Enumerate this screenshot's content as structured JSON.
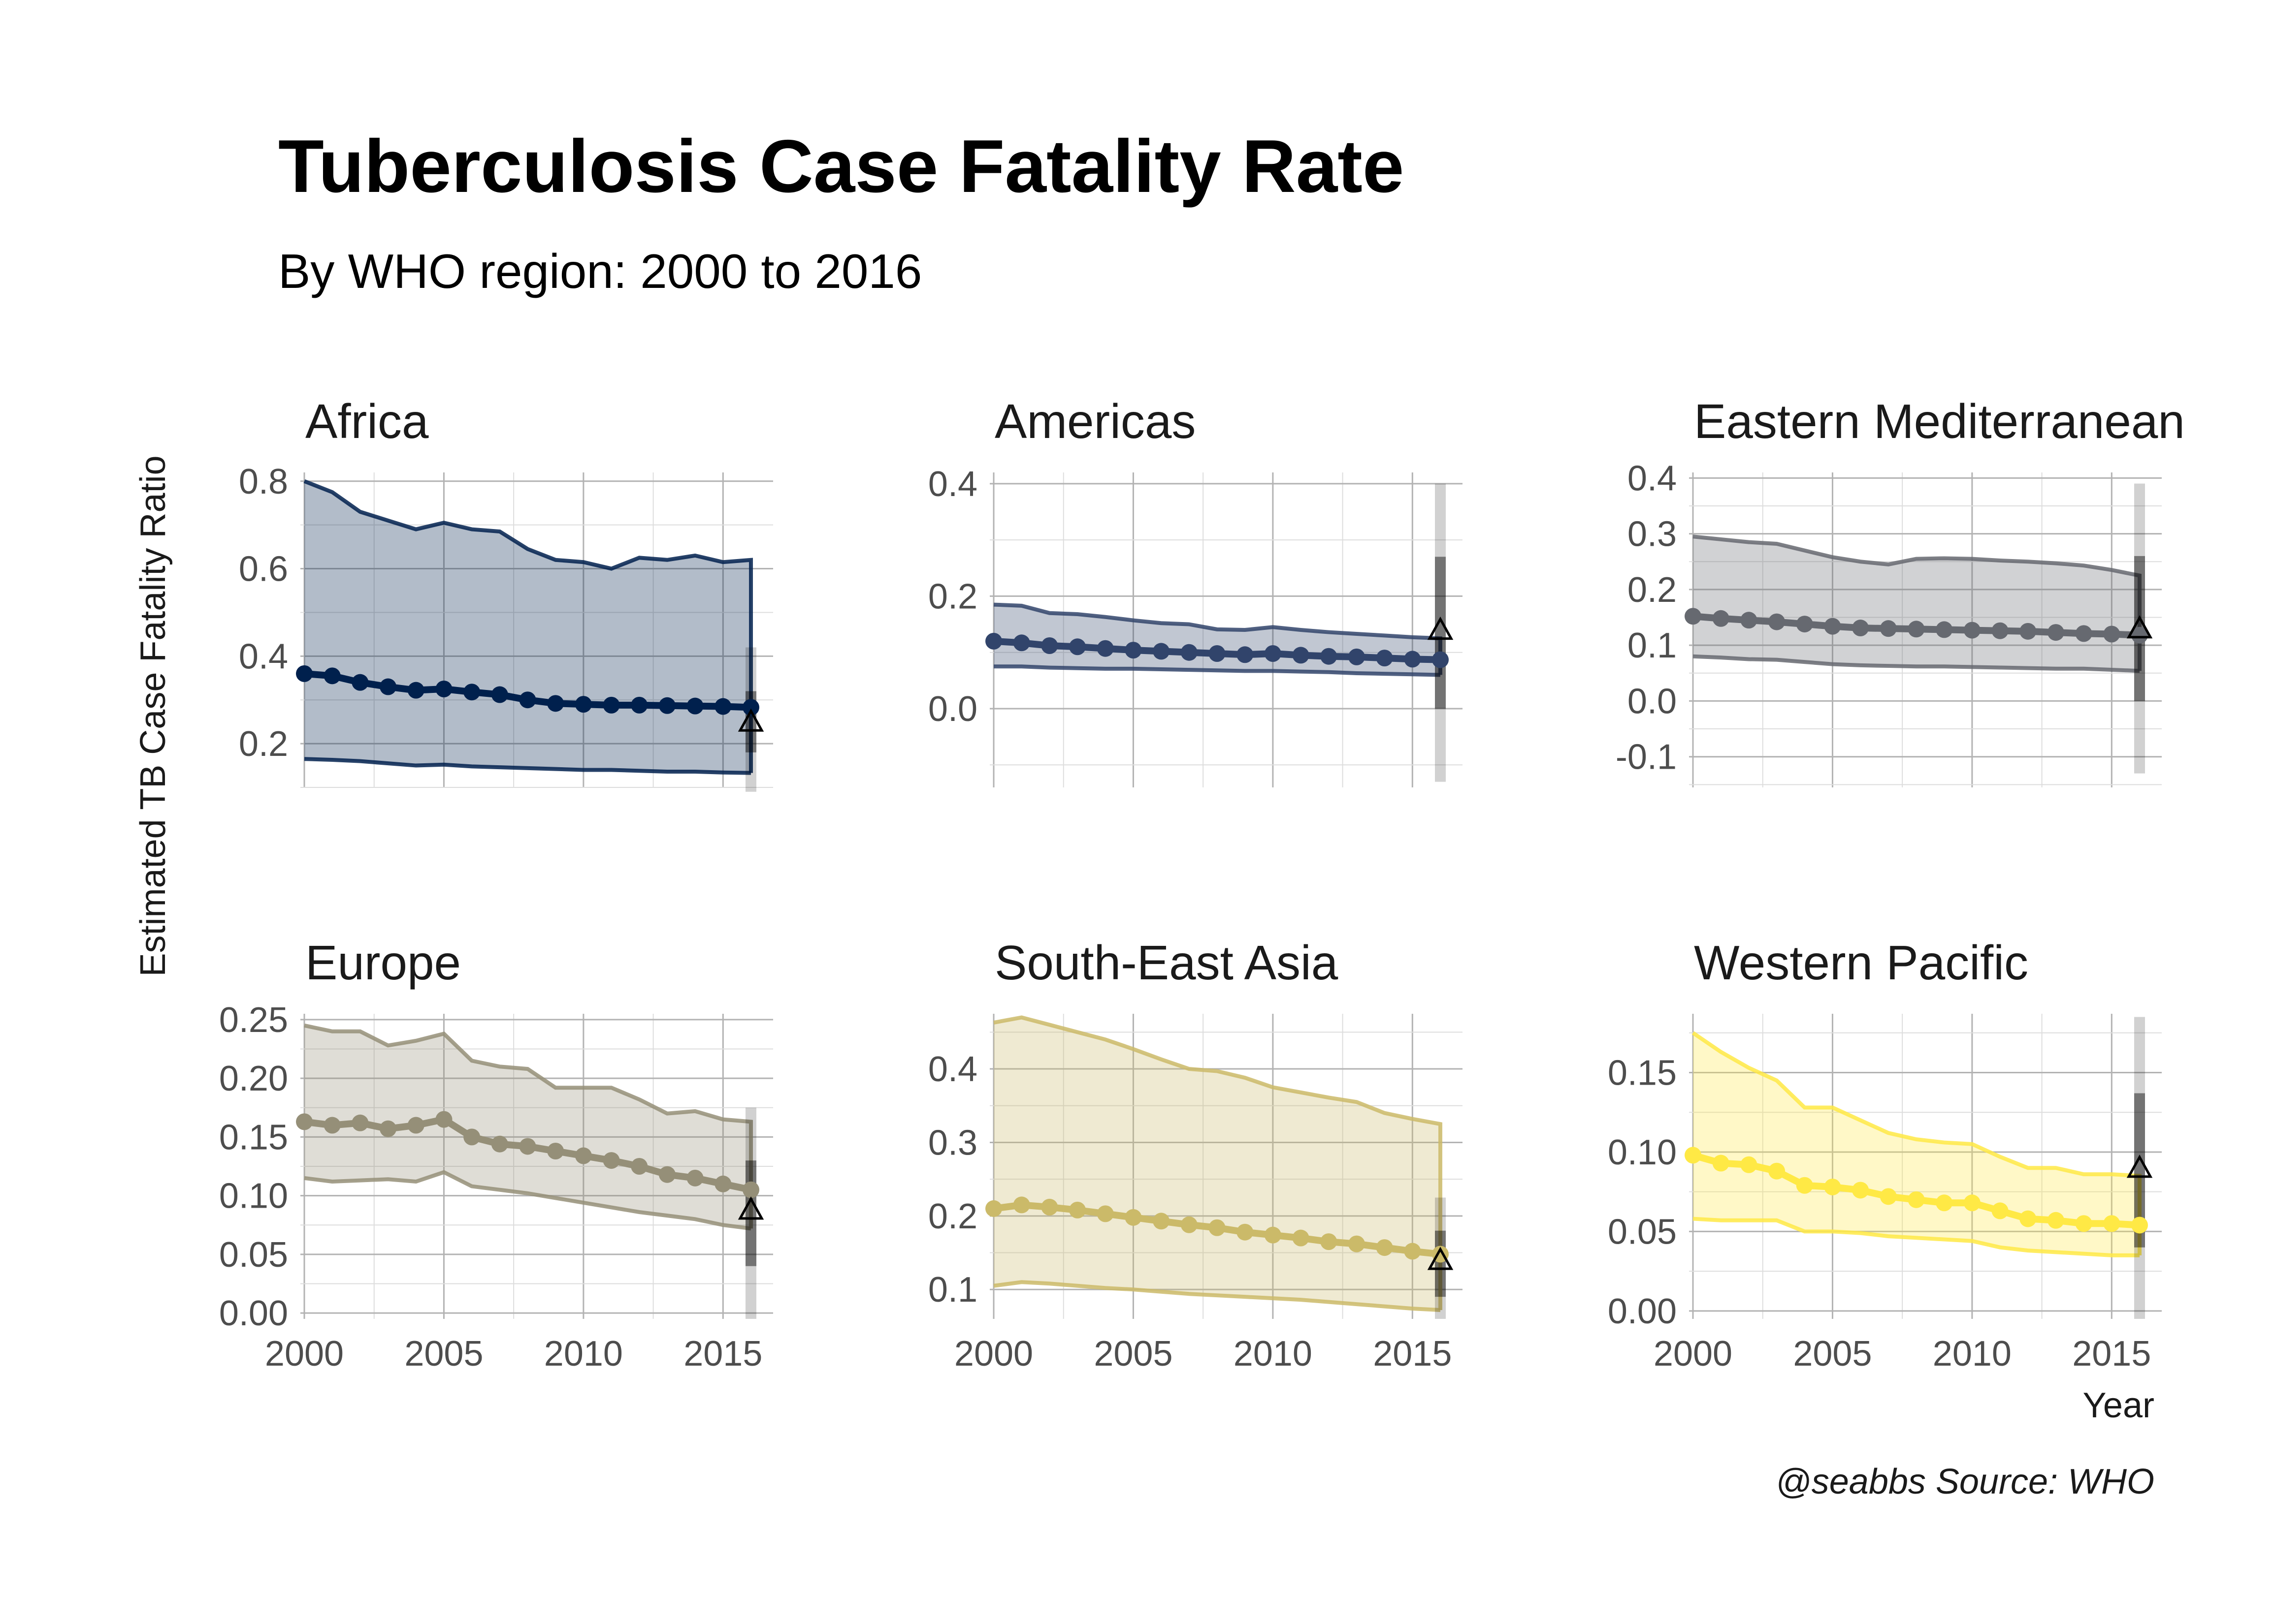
{
  "title": "Tuberculosis Case Fatality Rate",
  "subtitle": "By WHO region: 2000 to 2016",
  "ylabel": "Estimated TB Case Fatality Ratio",
  "xlabel": "Year",
  "caption": "@seabbs Source: WHO",
  "chart_data": [
    {
      "type": "line",
      "panel": "Africa",
      "color": "#00204D",
      "xlim": [
        2000,
        2016
      ],
      "ylim": [
        0.1,
        0.82
      ],
      "y_ticks": [
        0.2,
        0.4,
        0.6,
        0.8
      ],
      "y_tick_labels": [
        "0.2",
        "0.4",
        "0.6",
        "0.8"
      ],
      "x_ticks": [
        2000,
        2005,
        2010,
        2015
      ],
      "x_tick_labels": [
        "2000",
        "2005",
        "2010",
        "2015"
      ],
      "show_x_labels": false,
      "x": [
        2000,
        2001,
        2002,
        2003,
        2004,
        2005,
        2006,
        2007,
        2008,
        2009,
        2010,
        2011,
        2012,
        2013,
        2014,
        2015,
        2016
      ],
      "y": [
        0.36,
        0.355,
        0.34,
        0.33,
        0.322,
        0.325,
        0.318,
        0.312,
        0.3,
        0.292,
        0.29,
        0.288,
        0.288,
        0.287,
        0.286,
        0.285,
        0.283
      ],
      "lower": [
        0.165,
        0.163,
        0.16,
        0.155,
        0.15,
        0.152,
        0.148,
        0.146,
        0.144,
        0.142,
        0.14,
        0.14,
        0.138,
        0.136,
        0.136,
        0.134,
        0.133
      ],
      "upper": [
        0.8,
        0.775,
        0.73,
        0.71,
        0.69,
        0.705,
        0.69,
        0.685,
        0.645,
        0.62,
        0.615,
        0.6,
        0.625,
        0.62,
        0.63,
        0.615,
        0.62
      ],
      "point_2016": 0.25,
      "ci_inner": [
        0.18,
        0.32
      ],
      "ci_outer": [
        0.09,
        0.42
      ]
    },
    {
      "type": "line",
      "panel": "Americas",
      "color": "#31446B",
      "xlim": [
        2000,
        2016
      ],
      "ylim": [
        -0.14,
        0.42
      ],
      "y_ticks": [
        0.0,
        0.2,
        0.4
      ],
      "y_tick_labels": [
        "0.0",
        "0.2",
        "0.4"
      ],
      "x_ticks": [
        2000,
        2005,
        2010,
        2015
      ],
      "x_tick_labels": [
        "2000",
        "2005",
        "2010",
        "2015"
      ],
      "show_x_labels": false,
      "x": [
        2000,
        2001,
        2002,
        2003,
        2004,
        2005,
        2006,
        2007,
        2008,
        2009,
        2010,
        2011,
        2012,
        2013,
        2014,
        2015,
        2016
      ],
      "y": [
        0.12,
        0.117,
        0.112,
        0.11,
        0.107,
        0.104,
        0.102,
        0.1,
        0.098,
        0.096,
        0.098,
        0.095,
        0.093,
        0.092,
        0.09,
        0.088,
        0.087
      ],
      "lower": [
        0.075,
        0.075,
        0.073,
        0.072,
        0.071,
        0.071,
        0.07,
        0.069,
        0.068,
        0.067,
        0.067,
        0.066,
        0.065,
        0.063,
        0.062,
        0.061,
        0.06
      ],
      "upper": [
        0.185,
        0.183,
        0.17,
        0.168,
        0.163,
        0.157,
        0.152,
        0.15,
        0.141,
        0.14,
        0.145,
        0.14,
        0.136,
        0.133,
        0.13,
        0.127,
        0.125
      ],
      "point_2016": 0.14,
      "ci_inner": [
        0.0,
        0.27
      ],
      "ci_outer": [
        -0.13,
        0.4
      ]
    },
    {
      "type": "line",
      "panel": "Eastern Mediterranean",
      "color": "#666970",
      "xlim": [
        2000,
        2016
      ],
      "ylim": [
        -0.155,
        0.41
      ],
      "y_ticks": [
        -0.1,
        0.0,
        0.1,
        0.2,
        0.3,
        0.4
      ],
      "y_tick_labels": [
        "-0.1",
        "0.0",
        "0.1",
        "0.2",
        "0.3",
        "0.4"
      ],
      "x_ticks": [
        2000,
        2005,
        2010,
        2015
      ],
      "x_tick_labels": [
        "2000",
        "2005",
        "2010",
        "2015"
      ],
      "show_x_labels": false,
      "x": [
        2000,
        2001,
        2002,
        2003,
        2004,
        2005,
        2006,
        2007,
        2008,
        2009,
        2010,
        2011,
        2012,
        2013,
        2014,
        2015,
        2016
      ],
      "y": [
        0.152,
        0.148,
        0.145,
        0.142,
        0.138,
        0.134,
        0.131,
        0.13,
        0.129,
        0.128,
        0.127,
        0.126,
        0.125,
        0.123,
        0.121,
        0.12,
        0.118
      ],
      "lower": [
        0.08,
        0.078,
        0.075,
        0.074,
        0.07,
        0.066,
        0.064,
        0.063,
        0.062,
        0.062,
        0.061,
        0.06,
        0.059,
        0.058,
        0.058,
        0.056,
        0.054
      ],
      "upper": [
        0.295,
        0.29,
        0.285,
        0.282,
        0.27,
        0.258,
        0.25,
        0.245,
        0.255,
        0.256,
        0.255,
        0.252,
        0.25,
        0.247,
        0.243,
        0.235,
        0.225
      ],
      "point_2016": 0.13,
      "ci_inner": [
        0.0,
        0.26
      ],
      "ci_outer": [
        -0.13,
        0.39
      ]
    },
    {
      "type": "line",
      "panel": "Europe",
      "color": "#958F78",
      "xlim": [
        2000,
        2016
      ],
      "ylim": [
        -0.005,
        0.255
      ],
      "y_ticks": [
        0.0,
        0.05,
        0.1,
        0.15,
        0.2,
        0.25
      ],
      "y_tick_labels": [
        "0.00",
        "0.05",
        "0.10",
        "0.15",
        "0.20",
        "0.25"
      ],
      "x_ticks": [
        2000,
        2005,
        2010,
        2015
      ],
      "x_tick_labels": [
        "2000",
        "2005",
        "2010",
        "2015"
      ],
      "show_x_labels": true,
      "x": [
        2000,
        2001,
        2002,
        2003,
        2004,
        2005,
        2006,
        2007,
        2008,
        2009,
        2010,
        2011,
        2012,
        2013,
        2014,
        2015,
        2016
      ],
      "y": [
        0.163,
        0.16,
        0.162,
        0.157,
        0.16,
        0.165,
        0.15,
        0.144,
        0.142,
        0.138,
        0.134,
        0.13,
        0.125,
        0.118,
        0.115,
        0.11,
        0.105
      ],
      "lower": [
        0.115,
        0.112,
        0.113,
        0.114,
        0.112,
        0.12,
        0.108,
        0.105,
        0.102,
        0.098,
        0.094,
        0.09,
        0.086,
        0.083,
        0.08,
        0.075,
        0.072
      ],
      "upper": [
        0.245,
        0.24,
        0.24,
        0.228,
        0.232,
        0.238,
        0.215,
        0.21,
        0.208,
        0.192,
        0.192,
        0.192,
        0.182,
        0.17,
        0.172,
        0.165,
        0.163
      ],
      "point_2016": 0.088,
      "ci_inner": [
        0.04,
        0.13
      ],
      "ci_outer": [
        -0.005,
        0.175
      ]
    },
    {
      "type": "line",
      "panel": "South-East Asia",
      "color": "#CBBA69",
      "xlim": [
        2000,
        2016
      ],
      "ylim": [
        0.06,
        0.475
      ],
      "y_ticks": [
        0.1,
        0.2,
        0.3,
        0.4
      ],
      "y_tick_labels": [
        "0.1",
        "0.2",
        "0.3",
        "0.4"
      ],
      "x_ticks": [
        2000,
        2005,
        2010,
        2015
      ],
      "x_tick_labels": [
        "2000",
        "2005",
        "2010",
        "2015"
      ],
      "show_x_labels": true,
      "x": [
        2000,
        2001,
        2002,
        2003,
        2004,
        2005,
        2006,
        2007,
        2008,
        2009,
        2010,
        2011,
        2012,
        2013,
        2014,
        2015,
        2016
      ],
      "y": [
        0.21,
        0.215,
        0.212,
        0.208,
        0.203,
        0.198,
        0.193,
        0.188,
        0.184,
        0.178,
        0.174,
        0.17,
        0.165,
        0.162,
        0.157,
        0.152,
        0.148
      ],
      "lower": [
        0.105,
        0.11,
        0.108,
        0.105,
        0.102,
        0.1,
        0.097,
        0.094,
        0.092,
        0.09,
        0.088,
        0.086,
        0.083,
        0.08,
        0.077,
        0.074,
        0.072
      ],
      "upper": [
        0.463,
        0.47,
        0.46,
        0.45,
        0.44,
        0.427,
        0.413,
        0.4,
        0.397,
        0.388,
        0.375,
        0.368,
        0.361,
        0.355,
        0.34,
        0.332,
        0.325
      ],
      "point_2016": 0.14,
      "ci_inner": [
        0.09,
        0.18
      ],
      "ci_outer": [
        0.06,
        0.225
      ]
    },
    {
      "type": "line",
      "panel": "Western Pacific",
      "color": "#FFE945",
      "xlim": [
        2000,
        2016
      ],
      "ylim": [
        -0.005,
        0.187
      ],
      "y_ticks": [
        0.0,
        0.05,
        0.1,
        0.15
      ],
      "y_tick_labels": [
        "0.00",
        "0.05",
        "0.10",
        "0.15"
      ],
      "x_ticks": [
        2000,
        2005,
        2010,
        2015
      ],
      "x_tick_labels": [
        "2000",
        "2005",
        "2010",
        "2015"
      ],
      "show_x_labels": true,
      "x": [
        2000,
        2001,
        2002,
        2003,
        2004,
        2005,
        2006,
        2007,
        2008,
        2009,
        2010,
        2011,
        2012,
        2013,
        2014,
        2015,
        2016
      ],
      "y": [
        0.098,
        0.093,
        0.092,
        0.088,
        0.079,
        0.078,
        0.076,
        0.072,
        0.07,
        0.068,
        0.068,
        0.063,
        0.058,
        0.057,
        0.055,
        0.055,
        0.054
      ],
      "lower": [
        0.058,
        0.057,
        0.057,
        0.057,
        0.05,
        0.05,
        0.049,
        0.047,
        0.046,
        0.045,
        0.044,
        0.04,
        0.038,
        0.037,
        0.036,
        0.035,
        0.035
      ],
      "upper": [
        0.175,
        0.163,
        0.153,
        0.145,
        0.128,
        0.128,
        0.12,
        0.112,
        0.108,
        0.106,
        0.105,
        0.097,
        0.09,
        0.09,
        0.086,
        0.086,
        0.085
      ],
      "point_2016": 0.09,
      "ci_inner": [
        0.04,
        0.137
      ],
      "ci_outer": [
        -0.005,
        0.185
      ]
    }
  ]
}
